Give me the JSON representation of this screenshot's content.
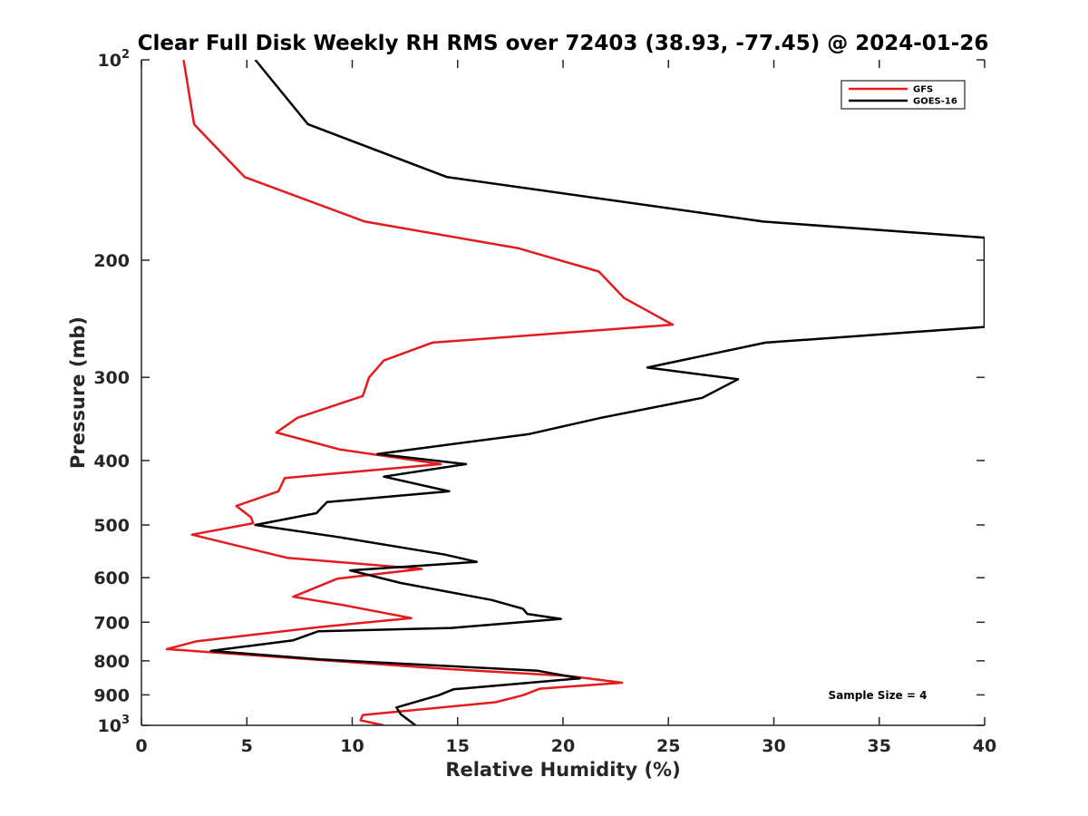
{
  "chart_data": {
    "type": "line",
    "title": "Clear Full Disk Weekly RH RMS over 72403 (38.93, -77.45) @ 2024-01-26",
    "xlabel": "Relative Humidity (%)",
    "ylabel": "Pressure (mb)",
    "xlim": [
      0,
      40
    ],
    "ylim": [
      100,
      1000
    ],
    "yscale": "log",
    "y_reversed": true,
    "x_ticks": [
      "0",
      "5",
      "10",
      "15",
      "20",
      "25",
      "30",
      "35",
      "40"
    ],
    "y_ticks": [
      {
        "value": 100,
        "label": "10",
        "sup": "2"
      },
      {
        "value": 200,
        "label": "200",
        "sup": ""
      },
      {
        "value": 300,
        "label": "300",
        "sup": ""
      },
      {
        "value": 400,
        "label": "400",
        "sup": ""
      },
      {
        "value": 500,
        "label": "500",
        "sup": ""
      },
      {
        "value": 600,
        "label": "600",
        "sup": ""
      },
      {
        "value": 700,
        "label": "700",
        "sup": ""
      },
      {
        "value": 800,
        "label": "800",
        "sup": ""
      },
      {
        "value": 900,
        "label": "900",
        "sup": ""
      },
      {
        "value": 1000,
        "label": "10",
        "sup": "3"
      }
    ],
    "grid": false,
    "legend_position": "top-right",
    "annotation": "Sample Size = 4",
    "series": [
      {
        "name": "GFS",
        "color": "#e41a1c",
        "points": [
          [
            2.0,
            100
          ],
          [
            2.5,
            125
          ],
          [
            4.9,
            150
          ],
          [
            10.6,
            175
          ],
          [
            17.9,
            192
          ],
          [
            21.7,
            208
          ],
          [
            22.9,
            228
          ],
          [
            25.2,
            250
          ],
          [
            13.8,
            266
          ],
          [
            11.5,
            283
          ],
          [
            10.8,
            300
          ],
          [
            10.5,
            320
          ],
          [
            7.4,
            345
          ],
          [
            6.4,
            363
          ],
          [
            9.4,
            385
          ],
          [
            14.2,
            405
          ],
          [
            6.8,
            425
          ],
          [
            6.5,
            445
          ],
          [
            4.5,
            468
          ],
          [
            5.2,
            487
          ],
          [
            5.3,
            497
          ],
          [
            2.4,
            517
          ],
          [
            6.9,
            560
          ],
          [
            13.3,
            582
          ],
          [
            9.3,
            602
          ],
          [
            7.2,
            641
          ],
          [
            9.6,
            660
          ],
          [
            12.8,
            690
          ],
          [
            8.4,
            712
          ],
          [
            2.6,
            748
          ],
          [
            1.2,
            768
          ],
          [
            14.5,
            823
          ],
          [
            20.3,
            843
          ],
          [
            22.8,
            863
          ],
          [
            18.9,
            881
          ],
          [
            18.1,
            901
          ],
          [
            16.8,
            923
          ],
          [
            10.5,
            965
          ],
          [
            10.4,
            983
          ],
          [
            11.5,
            1000
          ]
        ]
      },
      {
        "name": "GOES-16",
        "color": "#000000",
        "points": [
          [
            5.4,
            100
          ],
          [
            7.9,
            125
          ],
          [
            14.5,
            150
          ],
          [
            29.5,
            175
          ],
          [
            40.0,
            185
          ],
          [
            40.0,
            252
          ],
          [
            29.6,
            266
          ],
          [
            24.0,
            290
          ],
          [
            28.3,
            302
          ],
          [
            26.6,
            322
          ],
          [
            21.8,
            345
          ],
          [
            18.4,
            365
          ],
          [
            11.2,
            391
          ],
          [
            15.4,
            405
          ],
          [
            11.5,
            423
          ],
          [
            14.6,
            445
          ],
          [
            8.8,
            462
          ],
          [
            8.3,
            480
          ],
          [
            5.4,
            500
          ],
          [
            9.3,
            521
          ],
          [
            14.4,
            554
          ],
          [
            15.9,
            568
          ],
          [
            9.9,
            585
          ],
          [
            12.3,
            611
          ],
          [
            16.6,
            648
          ],
          [
            18.1,
            668
          ],
          [
            18.3,
            680
          ],
          [
            19.9,
            692
          ],
          [
            14.7,
            714
          ],
          [
            8.4,
            722
          ],
          [
            7.2,
            745
          ],
          [
            3.3,
            773
          ],
          [
            8.5,
            796
          ],
          [
            18.8,
            828
          ],
          [
            20.8,
            850
          ],
          [
            14.8,
            883
          ],
          [
            14.1,
            901
          ],
          [
            12.1,
            940
          ],
          [
            12.3,
            962
          ],
          [
            13.0,
            1000
          ]
        ]
      }
    ]
  }
}
